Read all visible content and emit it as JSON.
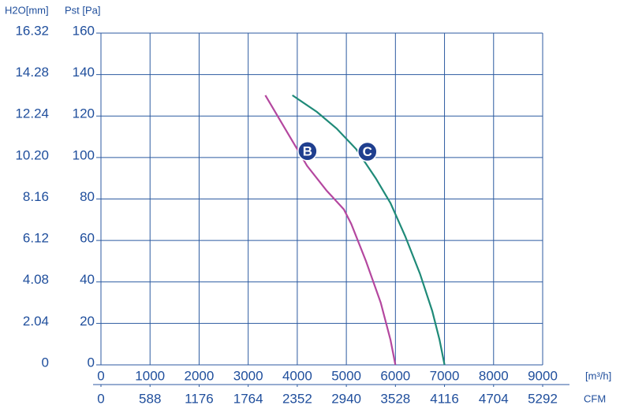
{
  "chart_data": {
    "type": "line",
    "y_label": "Pst [Pa]",
    "y2_label": "H2O[mm]",
    "x_label": "[m³/h]",
    "x2_label": "CFM",
    "xlim": [
      0,
      9000
    ],
    "xticks": [
      0,
      1000,
      2000,
      3000,
      4000,
      5000,
      6000,
      7000,
      8000,
      9000
    ],
    "x2lim": [
      0,
      5292
    ],
    "x2ticks": [
      0,
      588,
      1176,
      1764,
      2352,
      2940,
      3528,
      4116,
      4704,
      5292
    ],
    "ylim": [
      0,
      160
    ],
    "yticks": [
      0,
      20,
      40,
      60,
      80,
      100,
      120,
      140,
      160
    ],
    "y2lim": [
      0,
      16.32
    ],
    "y2ticks": [
      0,
      2.04,
      4.08,
      6.12,
      8.16,
      {
        "value": 10.2,
        "label": "10.20"
      },
      12.24,
      14.28,
      16.32
    ],
    "grid": true,
    "series": [
      {
        "name": "B",
        "color": "#b4479f",
        "x": [
          3350,
          3800,
          4200,
          4600,
          4950,
          5100,
          5400,
          5700,
          5900,
          6000
        ],
        "values": [
          130,
          112,
          96,
          84,
          75,
          68,
          50,
          30,
          12,
          0
        ]
      },
      {
        "name": "C",
        "color": "#1f8a78",
        "x": [
          3900,
          4400,
          4800,
          5200,
          5600,
          5900,
          6200,
          6500,
          6750,
          6900,
          7000
        ],
        "values": [
          130,
          122,
          114,
          104,
          90,
          78,
          62,
          44,
          26,
          12,
          0
        ]
      }
    ]
  }
}
